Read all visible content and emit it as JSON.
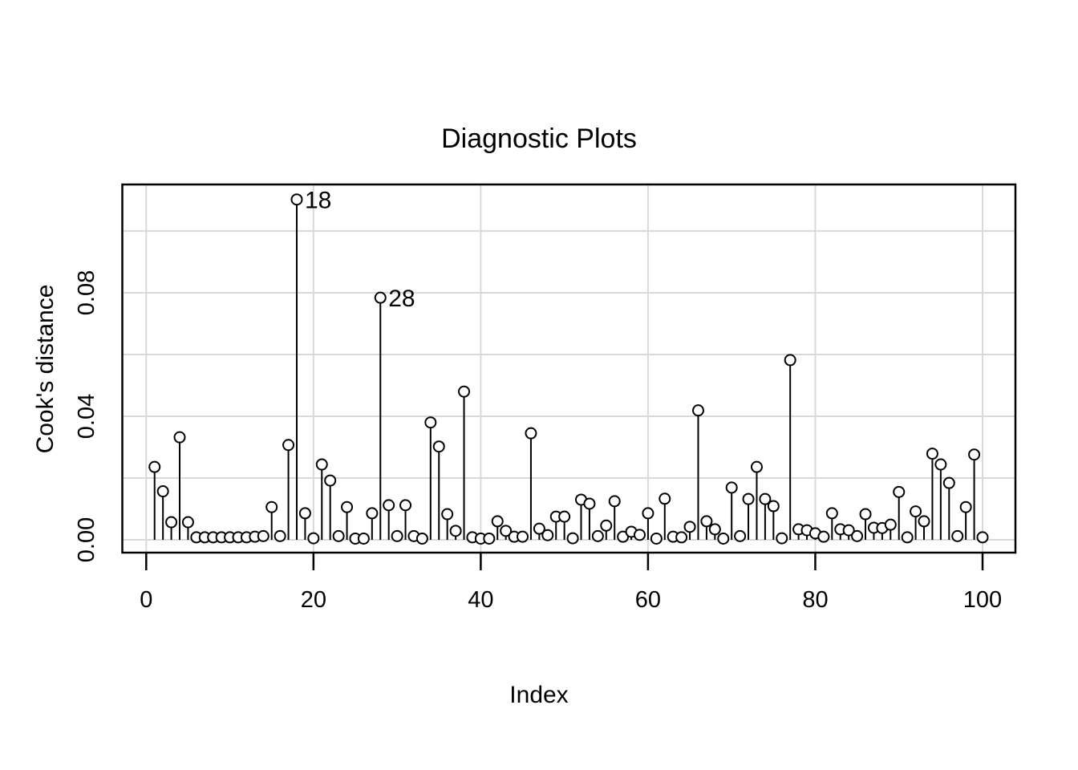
{
  "chart_data": {
    "type": "lollipop",
    "title": "Diagnostic Plots",
    "xlabel": "Index",
    "ylabel": "Cook's distance",
    "x": [
      1,
      2,
      3,
      4,
      5,
      6,
      7,
      8,
      9,
      10,
      11,
      12,
      13,
      14,
      15,
      16,
      17,
      18,
      19,
      20,
      21,
      22,
      23,
      24,
      25,
      26,
      27,
      28,
      29,
      30,
      31,
      32,
      33,
      34,
      35,
      36,
      37,
      38,
      39,
      40,
      41,
      42,
      43,
      44,
      45,
      46,
      47,
      48,
      49,
      50,
      51,
      52,
      53,
      54,
      55,
      56,
      57,
      58,
      59,
      60,
      61,
      62,
      63,
      64,
      65,
      66,
      67,
      68,
      69,
      70,
      71,
      72,
      73,
      74,
      75,
      76,
      77,
      78,
      79,
      80,
      81,
      82,
      83,
      84,
      85,
      86,
      87,
      88,
      89,
      90,
      91,
      92,
      93,
      94,
      95,
      96,
      97,
      98,
      99,
      100
    ],
    "values": [
      0.0236,
      0.0157,
      0.0057,
      0.0332,
      0.0057,
      0.0008,
      0.0008,
      0.0008,
      0.0008,
      0.0008,
      0.0008,
      0.0008,
      0.001,
      0.0012,
      0.0106,
      0.0012,
      0.0307,
      0.1102,
      0.0086,
      0.0005,
      0.0244,
      0.0192,
      0.0012,
      0.0106,
      0.0004,
      0.0004,
      0.0086,
      0.0784,
      0.0112,
      0.0012,
      0.0112,
      0.0012,
      0.0004,
      0.038,
      0.0302,
      0.0083,
      0.0029,
      0.048,
      0.0008,
      0.0004,
      0.0004,
      0.006,
      0.0029,
      0.001,
      0.001,
      0.0345,
      0.0036,
      0.0015,
      0.0075,
      0.0075,
      0.0005,
      0.013,
      0.0117,
      0.0012,
      0.0046,
      0.0125,
      0.001,
      0.0026,
      0.0016,
      0.0086,
      0.0004,
      0.0133,
      0.001,
      0.0008,
      0.0042,
      0.0419,
      0.006,
      0.0034,
      0.0004,
      0.0169,
      0.0012,
      0.0132,
      0.0236,
      0.0132,
      0.0109,
      0.0005,
      0.0582,
      0.0034,
      0.0031,
      0.0021,
      0.001,
      0.0086,
      0.0034,
      0.0031,
      0.0012,
      0.0083,
      0.0039,
      0.0038,
      0.0049,
      0.0155,
      0.0008,
      0.0092,
      0.006,
      0.0279,
      0.0244,
      0.0184,
      0.0012,
      0.0106,
      0.0276,
      0.0008
    ],
    "labeled_points": [
      {
        "x": 18,
        "label": "18"
      },
      {
        "x": 28,
        "label": "28"
      }
    ],
    "xticks": {
      "values": [
        0,
        20,
        40,
        60,
        80,
        100
      ],
      "labels": [
        "0",
        "20",
        "40",
        "60",
        "80",
        "100"
      ]
    },
    "yticks": {
      "values": [
        0,
        0.04,
        0.08
      ],
      "labels": [
        "0.00",
        "0.04",
        "0.08"
      ]
    },
    "xlim": [
      -2.9,
      104
    ],
    "ylim": [
      0,
      0.115
    ],
    "grid": {
      "on": true,
      "x_step": 20,
      "y_step": 0.02,
      "color": "#d9d9d9"
    },
    "legend": "none",
    "colors": {
      "background": "#ffffff",
      "box": "#000000",
      "stem": "#000000",
      "point_stroke": "#000000",
      "point_fill": "#ffffff",
      "text": "#000000"
    },
    "point_style": {
      "shape": "open-circle",
      "radius": 6.5
    }
  }
}
